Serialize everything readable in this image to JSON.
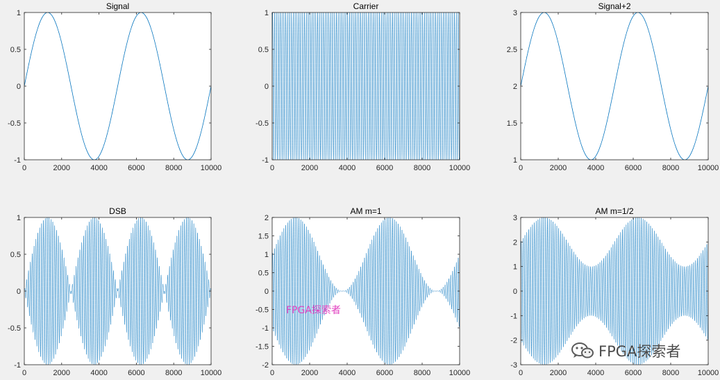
{
  "figure": {
    "background": "#f0f0f0",
    "line_color": "#0072bd"
  },
  "chart_data": [
    {
      "type": "line",
      "title": "Signal",
      "signal": "sin",
      "x": {
        "range": [
          0,
          10000
        ],
        "ticks": [
          0,
          2000,
          4000,
          6000,
          8000,
          10000
        ],
        "tick_labels": [
          "0",
          "2000",
          "4000",
          "6000",
          "8000",
          "10000"
        ]
      },
      "y": {
        "range": [
          -1,
          1
        ],
        "ticks": [
          -1,
          -0.5,
          0,
          0.5,
          1
        ],
        "tick_labels": [
          "-1",
          "-0.5",
          "0",
          "0.5",
          "1"
        ]
      },
      "series": [
        {
          "name": "Signal",
          "formula": "sin(2*pi*t/5000)",
          "period": 5000,
          "n_points": 10000
        }
      ]
    },
    {
      "type": "line",
      "title": "Carrier",
      "signal": "carrier",
      "x": {
        "range": [
          0,
          10000
        ],
        "ticks": [
          0,
          2000,
          4000,
          6000,
          8000,
          10000
        ],
        "tick_labels": [
          "0",
          "2000",
          "4000",
          "6000",
          "8000",
          "10000"
        ]
      },
      "y": {
        "range": [
          -1,
          1
        ],
        "ticks": [
          -1,
          -0.5,
          0,
          0.5,
          1
        ],
        "tick_labels": [
          "-1",
          "-0.5",
          "0",
          "0.5",
          "1"
        ]
      },
      "series": [
        {
          "name": "Carrier",
          "formula": "sin(2*pi*t/Tc)",
          "period": 100,
          "n_points": 10000
        }
      ]
    },
    {
      "type": "line",
      "title": "Signal+2",
      "signal": "sin_plus2",
      "x": {
        "range": [
          0,
          10000
        ],
        "ticks": [
          0,
          2000,
          4000,
          6000,
          8000,
          10000
        ],
        "tick_labels": [
          "0",
          "2000",
          "4000",
          "6000",
          "8000",
          "10000"
        ]
      },
      "y": {
        "range": [
          1,
          3
        ],
        "ticks": [
          1,
          1.5,
          2,
          2.5,
          3
        ],
        "tick_labels": [
          "1",
          "1.5",
          "2",
          "2.5",
          "3"
        ]
      },
      "series": [
        {
          "name": "Signal+2",
          "formula": "sin(2*pi*t/5000)+2",
          "period": 5000,
          "n_points": 10000
        }
      ]
    },
    {
      "type": "line",
      "title": "DSB",
      "signal": "dsb",
      "x": {
        "range": [
          0,
          10000
        ],
        "ticks": [
          0,
          2000,
          4000,
          6000,
          8000,
          10000
        ],
        "tick_labels": [
          "0",
          "2000",
          "4000",
          "6000",
          "8000",
          "10000"
        ]
      },
      "y": {
        "range": [
          -1,
          1
        ],
        "ticks": [
          -1,
          -0.5,
          0,
          0.5,
          1
        ],
        "tick_labels": [
          "-1",
          "-0.5",
          "0",
          "0.5",
          "1"
        ]
      },
      "series": [
        {
          "name": "DSB",
          "formula": "sin(2*pi*t/5000)*sin(2*pi*t/Tc)",
          "n_points": 10000
        }
      ]
    },
    {
      "type": "line",
      "title": "AM m=1",
      "signal": "am1",
      "x": {
        "range": [
          0,
          10000
        ],
        "ticks": [
          0,
          2000,
          4000,
          6000,
          8000,
          10000
        ],
        "tick_labels": [
          "0",
          "2000",
          "4000",
          "6000",
          "8000",
          "10000"
        ]
      },
      "y": {
        "range": [
          -2,
          2
        ],
        "ticks": [
          -2,
          -1.5,
          -1,
          -0.5,
          0,
          0.5,
          1,
          1.5,
          2
        ],
        "tick_labels": [
          "-2",
          "-1.5",
          "-1",
          "-0.5",
          "0",
          "0.5",
          "1",
          "1.5",
          "2"
        ]
      },
      "series": [
        {
          "name": "AM m=1",
          "formula": "(1+sin(2*pi*t/5000))*sin(2*pi*t/Tc)",
          "n_points": 10000
        }
      ]
    },
    {
      "type": "line",
      "title": "AM m=1/2",
      "signal": "am_half",
      "x": {
        "range": [
          0,
          10000
        ],
        "ticks": [
          0,
          2000,
          4000,
          6000,
          8000,
          10000
        ],
        "tick_labels": [
          "0",
          "2000",
          "4000",
          "6000",
          "8000",
          "10000"
        ]
      },
      "y": {
        "range": [
          -3,
          3
        ],
        "ticks": [
          -3,
          -2,
          -1,
          0,
          1,
          2,
          3
        ],
        "tick_labels": [
          "-3",
          "-2",
          "-1",
          "0",
          "1",
          "2",
          "3"
        ]
      },
      "series": [
        {
          "name": "AM m=1/2",
          "formula": "(2+sin(2*pi*t/5000))*sin(2*pi*t/Tc)",
          "n_points": 10000
        }
      ]
    }
  ],
  "watermarks": {
    "pink": "FPGA探索者",
    "gray": "FPGA探索者",
    "pink_color": "#e040c0",
    "gray_color": "#4a4a4a"
  }
}
